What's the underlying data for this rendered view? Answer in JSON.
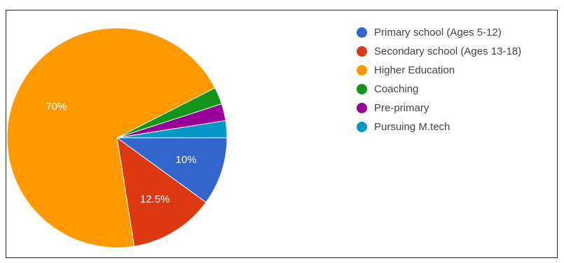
{
  "chart_data": {
    "type": "pie",
    "title": "",
    "legend_position": "right",
    "slices": [
      {
        "label": "Primary school (Ages 5-12)",
        "value": 10,
        "color": "#3366cc",
        "data_label": "10%"
      },
      {
        "label": "Secondary school (Ages 13-18)",
        "value": 12.5,
        "color": "#dc3912",
        "data_label": "12.5%"
      },
      {
        "label": "Higher Education",
        "value": 70,
        "color": "#ff9900",
        "data_label": "70%"
      },
      {
        "label": "Coaching",
        "value": 2.5,
        "color": "#109618",
        "data_label": ""
      },
      {
        "label": "Pre-primary",
        "value": 2.5,
        "color": "#990099",
        "data_label": ""
      },
      {
        "label": "Pursuing M.tech",
        "value": 2.5,
        "color": "#0099c6",
        "data_label": ""
      }
    ],
    "draw_order": [
      0,
      1,
      2,
      3,
      4,
      5
    ]
  }
}
